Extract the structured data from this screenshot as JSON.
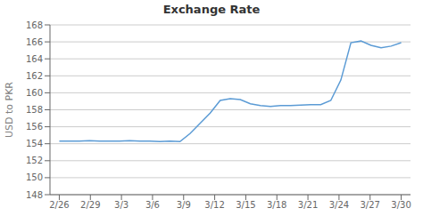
{
  "chart_data": {
    "type": "line",
    "title": "Exchange Rate",
    "y_label": "USD to PKR",
    "x": [
      0,
      0.323529,
      0.647059,
      0.970588,
      1.294118,
      1.617647,
      1.941176,
      2.264706,
      2.588235,
      2.911765,
      3.235294,
      3.558824,
      3.882353,
      4.205882,
      4.529412,
      4.852941,
      5.176471,
      5.5,
      5.823529,
      6.147059,
      6.470588,
      6.794118,
      7.117647,
      7.441176,
      7.764706,
      8.088235,
      8.411765,
      8.735294,
      9.058824,
      9.382353,
      9.705882,
      10.029412,
      10.352941,
      10.676471,
      11
    ],
    "values": [
      154.3,
      154.3,
      154.3,
      154.35,
      154.3,
      154.3,
      154.3,
      154.35,
      154.3,
      154.3,
      154.25,
      154.3,
      154.25,
      155.2,
      156.4,
      157.6,
      159.1,
      159.3,
      159.2,
      158.7,
      158.5,
      158.4,
      158.5,
      158.5,
      158.55,
      158.6,
      158.6,
      159.1,
      161.5,
      165.9,
      166.1,
      165.6,
      165.3,
      165.5,
      165.9
    ],
    "color": "#5b9bd5",
    "xlim": [
      -0.3,
      11.3
    ],
    "xticks": [
      {
        "value": 0,
        "label": "2/26"
      },
      {
        "value": 1,
        "label": "2/29"
      },
      {
        "value": 2,
        "label": "3/3"
      },
      {
        "value": 3,
        "label": "3/6"
      },
      {
        "value": 4,
        "label": "3/9"
      },
      {
        "value": 5,
        "label": "3/12"
      },
      {
        "value": 6,
        "label": "3/15"
      },
      {
        "value": 7,
        "label": "3/18"
      },
      {
        "value": 8,
        "label": "3/21"
      },
      {
        "value": 9,
        "label": "3/24"
      },
      {
        "value": 10,
        "label": "3/27"
      },
      {
        "value": 11,
        "label": "3/30"
      }
    ],
    "ylim": [
      148,
      168
    ],
    "yticks": [
      148,
      150,
      152,
      154,
      156,
      158,
      160,
      162,
      164,
      166,
      168
    ],
    "grid": true
  }
}
